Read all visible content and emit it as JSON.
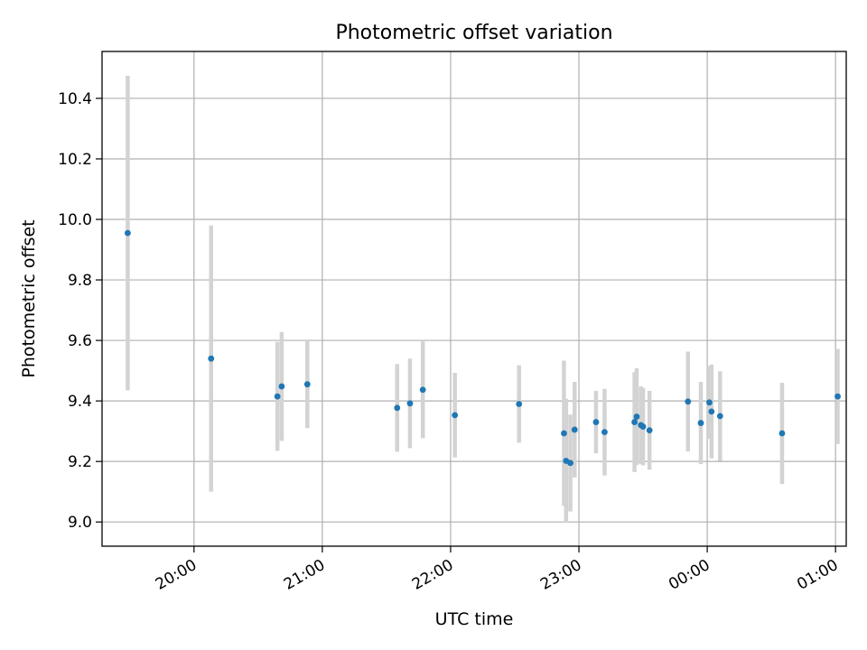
{
  "chart_data": {
    "type": "scatter",
    "title": "Photometric offset variation",
    "xlabel": "UTC time",
    "ylabel": "Photometric offset",
    "x_axis": {
      "unit": "UTC time",
      "range": [
        "19:17",
        "01:05"
      ],
      "ticks": [
        "20:00",
        "21:00",
        "22:00",
        "23:00",
        "00:00",
        "01:00"
      ]
    },
    "y_axis": {
      "range": [
        8.92,
        10.555
      ],
      "ticks": [
        "9.0",
        "9.2",
        "9.4",
        "9.6",
        "9.8",
        "10.0",
        "10.2",
        "10.4"
      ],
      "tick_values": [
        9.0,
        9.2,
        9.4,
        9.6,
        9.8,
        10.0,
        10.2,
        10.4
      ]
    },
    "grid": true,
    "colors": {
      "points": "#1f77b4",
      "errorbars": "#d3d3d3",
      "grid": "#b0b0b0"
    },
    "points": [
      {
        "time": "19:29",
        "y": 9.955,
        "err": 0.52
      },
      {
        "time": "20:08",
        "y": 9.54,
        "err": 0.44
      },
      {
        "time": "20:39",
        "y": 9.415,
        "err": 0.18
      },
      {
        "time": "20:41",
        "y": 9.448,
        "err": 0.18
      },
      {
        "time": "20:53",
        "y": 9.455,
        "err": 0.145
      },
      {
        "time": "21:35",
        "y": 9.377,
        "err": 0.145
      },
      {
        "time": "21:41",
        "y": 9.392,
        "err": 0.148
      },
      {
        "time": "21:47",
        "y": 9.437,
        "err": 0.16
      },
      {
        "time": "22:02",
        "y": 9.353,
        "err": 0.14
      },
      {
        "time": "22:32",
        "y": 9.39,
        "err": 0.128
      },
      {
        "time": "22:53",
        "y": 9.293,
        "err": 0.24
      },
      {
        "time": "22:54",
        "y": 9.202,
        "err": 0.205
      },
      {
        "time": "22:56",
        "y": 9.195,
        "err": 0.16
      },
      {
        "time": "22:58",
        "y": 9.305,
        "err": 0.158
      },
      {
        "time": "23:08",
        "y": 9.33,
        "err": 0.103
      },
      {
        "time": "23:12",
        "y": 9.297,
        "err": 0.143
      },
      {
        "time": "23:26",
        "y": 9.33,
        "err": 0.165
      },
      {
        "time": "23:27",
        "y": 9.348,
        "err": 0.16
      },
      {
        "time": "23:29",
        "y": 9.32,
        "err": 0.128
      },
      {
        "time": "23:30",
        "y": 9.315,
        "err": 0.128
      },
      {
        "time": "23:33",
        "y": 9.303,
        "err": 0.13
      },
      {
        "time": "23:51",
        "y": 9.398,
        "err": 0.165
      },
      {
        "time": "23:57",
        "y": 9.327,
        "err": 0.136
      },
      {
        "time": "00:01",
        "y": 9.395,
        "err": 0.12
      },
      {
        "time": "00:02",
        "y": 9.365,
        "err": 0.155
      },
      {
        "time": "00:06",
        "y": 9.35,
        "err": 0.148
      },
      {
        "time": "00:35",
        "y": 9.293,
        "err": 0.167
      },
      {
        "time": "01:01",
        "y": 9.415,
        "err": 0.157
      }
    ]
  }
}
